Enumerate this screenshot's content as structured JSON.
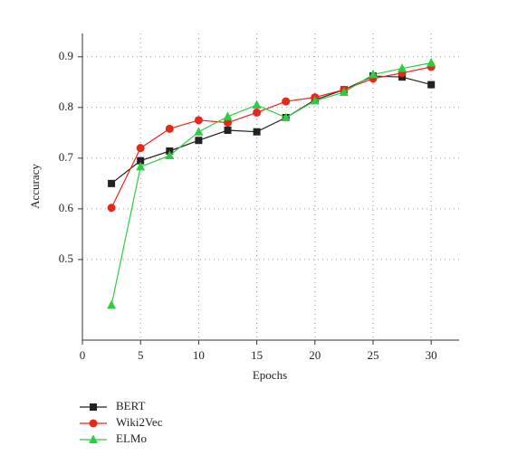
{
  "chart_data": {
    "type": "line",
    "x_label": "Epochs",
    "y_label": "Accuracy",
    "x": [
      2.5,
      5,
      7.5,
      10,
      12.5,
      15,
      17.5,
      20,
      22.5,
      25,
      27.5,
      30
    ],
    "series": [
      {
        "name": "BERT",
        "color": "#222222",
        "marker": "square",
        "values": [
          0.65,
          0.695,
          0.714,
          0.735,
          0.755,
          0.752,
          0.78,
          0.815,
          0.835,
          0.862,
          0.86,
          0.845
        ]
      },
      {
        "name": "Wiki2Vec",
        "color": "#e8271a",
        "marker": "circle",
        "values": [
          0.602,
          0.72,
          0.758,
          0.775,
          0.77,
          0.79,
          0.812,
          0.82,
          0.835,
          0.857,
          0.868,
          0.88
        ]
      },
      {
        "name": "ELMo",
        "color": "#2ecc40",
        "marker": "triangle",
        "values": [
          0.41,
          0.683,
          0.705,
          0.752,
          0.782,
          0.805,
          0.78,
          0.813,
          0.83,
          0.865,
          0.877,
          0.888
        ]
      }
    ],
    "xlim": [
      0,
      32.4
    ],
    "xticks": [
      0,
      5,
      10,
      15,
      20,
      25,
      30
    ],
    "ylim": [
      0.341,
      0.946
    ],
    "yticks": [
      0.5,
      0.6,
      0.7,
      0.8,
      0.9
    ],
    "grid": true,
    "legend": "bottom-left"
  }
}
